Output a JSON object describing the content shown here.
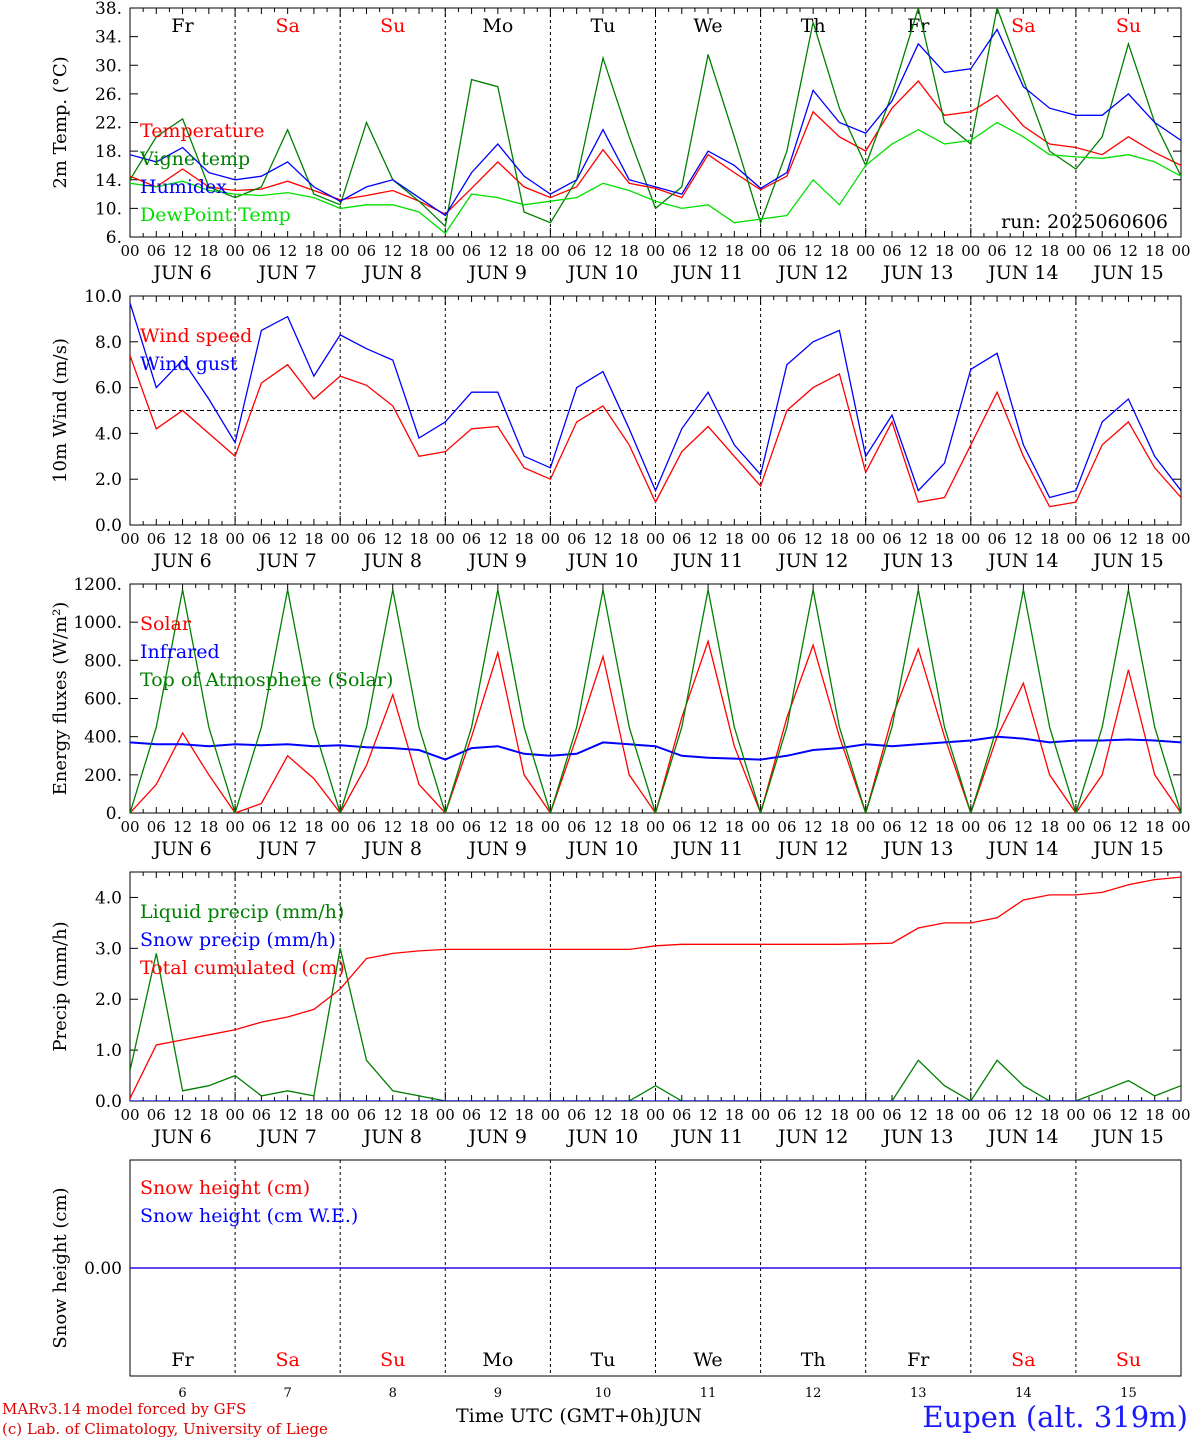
{
  "colors": {
    "red": "#ff0000",
    "blue": "#0000ff",
    "green": "#008000",
    "lightgreen": "#00e000",
    "black": "#000000"
  },
  "footer": {
    "model_line": "MARv3.14 model forced by GFS",
    "credit_line": "(c) Lab. of Climatology, University of Liege",
    "time_axis_label": "Time UTC (GMT+0h)JUN",
    "location": "Eupen (alt. 319m)"
  },
  "chart_data": [
    {
      "type": "line",
      "ylabel": "2m Temp. (°C)",
      "ylim": [
        6,
        38
      ],
      "ytick_labels": [
        "6.",
        "10.",
        "14.",
        "18.",
        "22.",
        "26.",
        "30.",
        "34.",
        "38."
      ],
      "grid": "vertical dashed day separators",
      "legend_position": "top-left",
      "annotation": "run: 2025060606",
      "weekdays": [
        "Fr",
        "Sa",
        "Su",
        "Mo",
        "Tu",
        "We",
        "Th",
        "Fr",
        "Sa",
        "Su"
      ],
      "weekday_colors": [
        "#000000",
        "#ff0000",
        "#ff0000",
        "#000000",
        "#000000",
        "#000000",
        "#000000",
        "#000000",
        "#ff0000",
        "#ff0000"
      ],
      "hour_tick_labels": [
        "00",
        "06",
        "12",
        "18"
      ],
      "date_labels": [
        "JUN 6",
        "JUN 7",
        "JUN 8",
        "JUN 9",
        "JUN 10",
        "JUN 11",
        "JUN 12",
        "JUN 13",
        "JUN 14",
        "JUN 15"
      ],
      "x_hours": [
        0,
        6,
        12,
        18,
        24,
        30,
        36,
        42,
        48,
        54,
        60,
        66,
        72,
        78,
        84,
        90,
        96,
        102,
        108,
        114,
        120,
        126,
        132,
        138,
        144,
        150,
        156,
        162,
        168,
        174,
        180,
        186,
        192,
        198,
        204,
        210,
        216,
        222,
        228,
        234,
        240
      ],
      "series": [
        {
          "name": "Temperature",
          "color": "#ff0000",
          "values": [
            14.5,
            13.0,
            15.5,
            13.0,
            12.5,
            12.7,
            13.8,
            12.5,
            11.2,
            11.8,
            12.5,
            11.0,
            9.2,
            12.8,
            16.5,
            13.0,
            11.5,
            13.0,
            18.2,
            13.5,
            12.8,
            11.5,
            17.5,
            15.0,
            12.6,
            14.5,
            23.5,
            20.0,
            18.0,
            24.0,
            27.8,
            23.0,
            23.5,
            25.8,
            21.5,
            19.0,
            18.5,
            17.5,
            20.0,
            17.8,
            16.0
          ]
        },
        {
          "name": "Vigne temp",
          "color": "#008000",
          "values": [
            14.0,
            20.0,
            22.5,
            13.0,
            11.5,
            13.0,
            21.0,
            12.0,
            10.5,
            22.0,
            14.0,
            11.0,
            7.5,
            28.0,
            27.0,
            9.5,
            8.0,
            14.0,
            31.0,
            20.0,
            10.0,
            13.0,
            31.5,
            20.0,
            8.0,
            18.0,
            36.0,
            24.0,
            16.0,
            26.0,
            38.0,
            22.0,
            19.0,
            38.0,
            28.0,
            18.0,
            15.5,
            20.0,
            33.0,
            22.0,
            14.5
          ]
        },
        {
          "name": "Humidex",
          "color": "#0000ff",
          "values": [
            17.5,
            16.5,
            18.5,
            15.0,
            14.0,
            14.5,
            16.5,
            13.0,
            11.0,
            13.0,
            14.0,
            11.5,
            9.0,
            15.0,
            19.0,
            14.5,
            12.0,
            14.0,
            21.0,
            14.0,
            13.0,
            12.0,
            18.0,
            16.0,
            12.8,
            15.0,
            26.5,
            22.0,
            20.5,
            25.0,
            33.0,
            29.0,
            29.5,
            35.0,
            27.0,
            24.0,
            23.0,
            23.0,
            26.0,
            22.0,
            19.5
          ]
        },
        {
          "name": "DewPoint Temp",
          "color": "#00e000",
          "values": [
            13.5,
            13.0,
            13.8,
            12.5,
            12.0,
            11.8,
            12.2,
            11.5,
            10.0,
            10.5,
            10.5,
            9.5,
            6.5,
            12.0,
            11.5,
            10.5,
            11.0,
            11.5,
            13.5,
            12.5,
            11.0,
            10.0,
            10.5,
            8.0,
            8.5,
            9.0,
            14.0,
            10.5,
            16.0,
            19.0,
            21.0,
            19.0,
            19.5,
            22.0,
            20.0,
            17.5,
            17.2,
            17.0,
            17.5,
            16.5,
            14.5
          ]
        }
      ]
    },
    {
      "type": "line",
      "ylabel": "10m Wind (m/s)",
      "ylim": [
        0,
        10
      ],
      "ytick_labels": [
        "0.0",
        "2.0",
        "4.0",
        "6.0",
        "8.0",
        "10.0"
      ],
      "reference_line_value": 5.0,
      "legend_position": "top-left",
      "hour_tick_labels": [
        "00",
        "06",
        "12",
        "18"
      ],
      "date_labels": [
        "JUN 6",
        "JUN 7",
        "JUN 8",
        "JUN 9",
        "JUN 10",
        "JUN 11",
        "JUN 12",
        "JUN 13",
        "JUN 14",
        "JUN 15"
      ],
      "x_hours": [
        0,
        6,
        12,
        18,
        24,
        30,
        36,
        42,
        48,
        54,
        60,
        66,
        72,
        78,
        84,
        90,
        96,
        102,
        108,
        114,
        120,
        126,
        132,
        138,
        144,
        150,
        156,
        162,
        168,
        174,
        180,
        186,
        192,
        198,
        204,
        210,
        216,
        222,
        228,
        234,
        240
      ],
      "series": [
        {
          "name": "Wind speed",
          "color": "#ff0000",
          "values": [
            7.4,
            4.2,
            5.0,
            4.0,
            3.0,
            6.2,
            7.0,
            5.5,
            6.5,
            6.1,
            5.2,
            3.0,
            3.2,
            4.2,
            4.3,
            2.5,
            2.0,
            4.5,
            5.2,
            3.5,
            1.0,
            3.2,
            4.3,
            3.0,
            1.7,
            5.0,
            6.0,
            6.6,
            2.3,
            4.5,
            1.0,
            1.2,
            3.5,
            5.8,
            3.0,
            0.8,
            1.0,
            3.5,
            4.5,
            2.5,
            1.2
          ]
        },
        {
          "name": "Wind gust",
          "color": "#0000ff",
          "values": [
            9.7,
            6.0,
            7.2,
            5.5,
            3.6,
            8.5,
            9.1,
            6.5,
            8.3,
            7.7,
            7.2,
            3.8,
            4.5,
            5.8,
            5.8,
            3.0,
            2.5,
            6.0,
            6.7,
            4.2,
            1.5,
            4.2,
            5.8,
            3.5,
            2.2,
            7.0,
            8.0,
            8.5,
            3.0,
            4.8,
            1.5,
            2.7,
            6.8,
            7.5,
            3.5,
            1.2,
            1.5,
            4.5,
            5.5,
            3.0,
            1.5
          ]
        }
      ]
    },
    {
      "type": "line",
      "ylabel": "Energy fluxes (W/m²)",
      "ylim": [
        0,
        1200
      ],
      "ytick_labels": [
        "0.",
        "200.",
        "400.",
        "600.",
        "800.",
        "1000.",
        "1200."
      ],
      "legend_position": "top-left",
      "hour_tick_labels": [
        "00",
        "06",
        "12",
        "18"
      ],
      "date_labels": [
        "JUN 6",
        "JUN 7",
        "JUN 8",
        "JUN 9",
        "JUN 10",
        "JUN 11",
        "JUN 12",
        "JUN 13",
        "JUN 14",
        "JUN 15"
      ],
      "x_hours": [
        0,
        6,
        12,
        18,
        24,
        30,
        36,
        42,
        48,
        54,
        60,
        66,
        72,
        78,
        84,
        90,
        96,
        102,
        108,
        114,
        120,
        126,
        132,
        138,
        144,
        150,
        156,
        162,
        168,
        174,
        180,
        186,
        192,
        198,
        204,
        210,
        216,
        222,
        228,
        234,
        240
      ],
      "series": [
        {
          "name": "Solar",
          "color": "#ff0000",
          "values": [
            0,
            150,
            420,
            200,
            0,
            50,
            300,
            180,
            0,
            250,
            620,
            150,
            0,
            400,
            840,
            200,
            0,
            400,
            820,
            200,
            0,
            500,
            900,
            350,
            0,
            500,
            880,
            400,
            0,
            500,
            860,
            400,
            0,
            400,
            680,
            200,
            0,
            200,
            750,
            200,
            0
          ]
        },
        {
          "name": "Infrared",
          "color": "#0000ff",
          "values": [
            370,
            360,
            360,
            350,
            360,
            355,
            360,
            350,
            355,
            345,
            340,
            330,
            280,
            340,
            350,
            310,
            300,
            310,
            370,
            360,
            350,
            300,
            290,
            285,
            280,
            300,
            330,
            340,
            360,
            350,
            360,
            370,
            380,
            400,
            390,
            370,
            380,
            380,
            385,
            380,
            370
          ]
        },
        {
          "name": "Top of Atmosphere (Solar)",
          "color": "#008000",
          "values": [
            0,
            450,
            1170,
            450,
            0,
            450,
            1170,
            450,
            0,
            450,
            1170,
            450,
            0,
            450,
            1170,
            450,
            0,
            450,
            1170,
            450,
            0,
            450,
            1170,
            450,
            0,
            450,
            1170,
            450,
            0,
            450,
            1170,
            450,
            0,
            450,
            1170,
            450,
            0,
            450,
            1170,
            450,
            0
          ]
        }
      ]
    },
    {
      "type": "line",
      "ylabel": "Precip (mm/h)",
      "ylim": [
        0,
        4.5
      ],
      "ytick_labels": [
        "0.0",
        "1.0",
        "2.0",
        "3.0",
        "4.0"
      ],
      "legend_position": "top-left",
      "hour_tick_labels": [
        "00",
        "06",
        "12",
        "18"
      ],
      "date_labels": [
        "JUN 6",
        "JUN 7",
        "JUN 8",
        "JUN 9",
        "JUN 10",
        "JUN 11",
        "JUN 12",
        "JUN 13",
        "JUN 14",
        "JUN 15"
      ],
      "x_hours": [
        0,
        6,
        12,
        18,
        24,
        30,
        36,
        42,
        48,
        54,
        60,
        66,
        72,
        78,
        84,
        90,
        96,
        102,
        108,
        114,
        120,
        126,
        132,
        138,
        144,
        150,
        156,
        162,
        168,
        174,
        180,
        186,
        192,
        198,
        204,
        210,
        216,
        222,
        228,
        234,
        240
      ],
      "series": [
        {
          "name": "Liquid precip (mm/h)",
          "color": "#008000",
          "values": [
            0.6,
            2.9,
            0.2,
            0.3,
            0.5,
            0.1,
            0.2,
            0.1,
            3.0,
            0.8,
            0.2,
            0.1,
            0.0,
            0.0,
            0.0,
            0.0,
            0.0,
            0.0,
            0.0,
            0.0,
            0.3,
            0.0,
            0.0,
            0.0,
            0.0,
            0.0,
            0.0,
            0.0,
            0.0,
            0.0,
            0.8,
            0.3,
            0.0,
            0.8,
            0.3,
            0.0,
            0.0,
            0.2,
            0.4,
            0.1,
            0.3
          ]
        },
        {
          "name": "Snow precip (mm/h)",
          "color": "#0000ff",
          "values": [
            0,
            0,
            0,
            0,
            0,
            0,
            0,
            0,
            0,
            0,
            0,
            0,
            0,
            0,
            0,
            0,
            0,
            0,
            0,
            0,
            0,
            0,
            0,
            0,
            0,
            0,
            0,
            0,
            0,
            0,
            0,
            0,
            0,
            0,
            0,
            0,
            0,
            0,
            0,
            0,
            0
          ]
        },
        {
          "name": "Total cumulated (cm)",
          "color": "#ff0000",
          "values": [
            0.05,
            1.1,
            1.2,
            1.3,
            1.4,
            1.55,
            1.65,
            1.8,
            2.2,
            2.8,
            2.9,
            2.95,
            2.98,
            2.98,
            2.98,
            2.98,
            2.98,
            2.98,
            2.98,
            2.98,
            3.05,
            3.08,
            3.08,
            3.08,
            3.08,
            3.08,
            3.08,
            3.08,
            3.09,
            3.1,
            3.4,
            3.5,
            3.5,
            3.6,
            3.95,
            4.05,
            4.05,
            4.1,
            4.25,
            4.35,
            4.4
          ]
        }
      ]
    },
    {
      "type": "line",
      "ylabel": "Snow height (cm)",
      "ylim": [
        -1,
        1
      ],
      "ytick_labels": [
        "0.00"
      ],
      "legend_position": "top-left",
      "weekdays": [
        "Fr",
        "Sa",
        "Su",
        "Mo",
        "Tu",
        "We",
        "Th",
        "Fr",
        "Sa",
        "Su"
      ],
      "weekday_colors": [
        "#000000",
        "#ff0000",
        "#ff0000",
        "#000000",
        "#000000",
        "#000000",
        "#000000",
        "#000000",
        "#ff0000",
        "#ff0000"
      ],
      "day_numbers": [
        "6",
        "7",
        "8",
        "9",
        "10",
        "11",
        "12",
        "13",
        "14",
        "15"
      ],
      "x_hours": [
        0,
        240
      ],
      "series": [
        {
          "name": "Snow height (cm)",
          "color": "#ff0000",
          "values": [
            0,
            0
          ]
        },
        {
          "name": "Snow height (cm W.E.)",
          "color": "#0000ff",
          "values": [
            0,
            0
          ]
        }
      ]
    }
  ]
}
